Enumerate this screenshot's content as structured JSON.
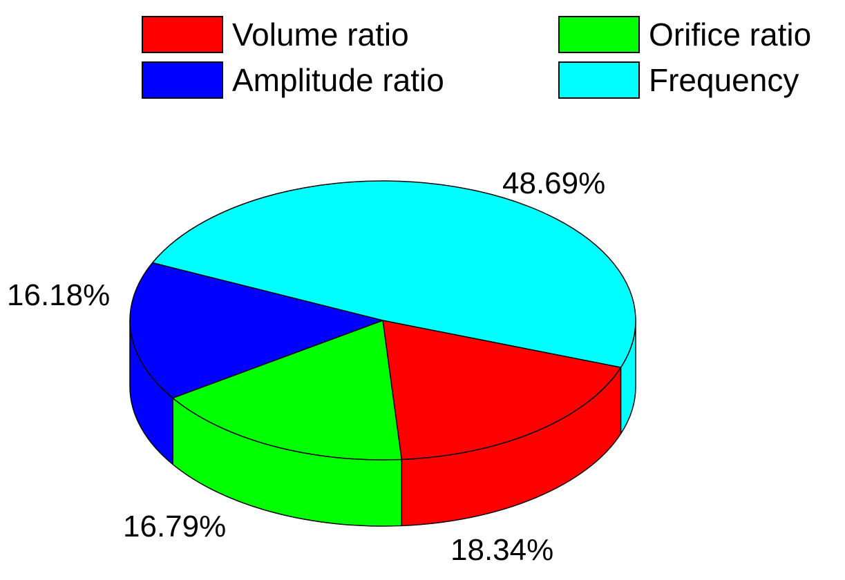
{
  "chart_data": {
    "type": "pie",
    "title": "",
    "style": "3d",
    "legend_position": "top",
    "series": [
      {
        "name": "Volume ratio",
        "value": 18.34,
        "label": "18.34%",
        "color": "#ff0000",
        "legend_key": "legend-volume-ratio"
      },
      {
        "name": "Orifice ratio",
        "value": 16.79,
        "label": "16.79%",
        "color": "#00ff00",
        "legend_key": "legend-orifice-ratio"
      },
      {
        "name": "Amplitude ratio",
        "value": 16.18,
        "label": "16.18%",
        "color": "#0000ff",
        "legend_key": "legend-amplitude-ratio"
      },
      {
        "name": "Frequency",
        "value": 48.69,
        "label": "48.69%",
        "color": "#00ffff",
        "legend_key": "legend-frequency"
      }
    ]
  }
}
